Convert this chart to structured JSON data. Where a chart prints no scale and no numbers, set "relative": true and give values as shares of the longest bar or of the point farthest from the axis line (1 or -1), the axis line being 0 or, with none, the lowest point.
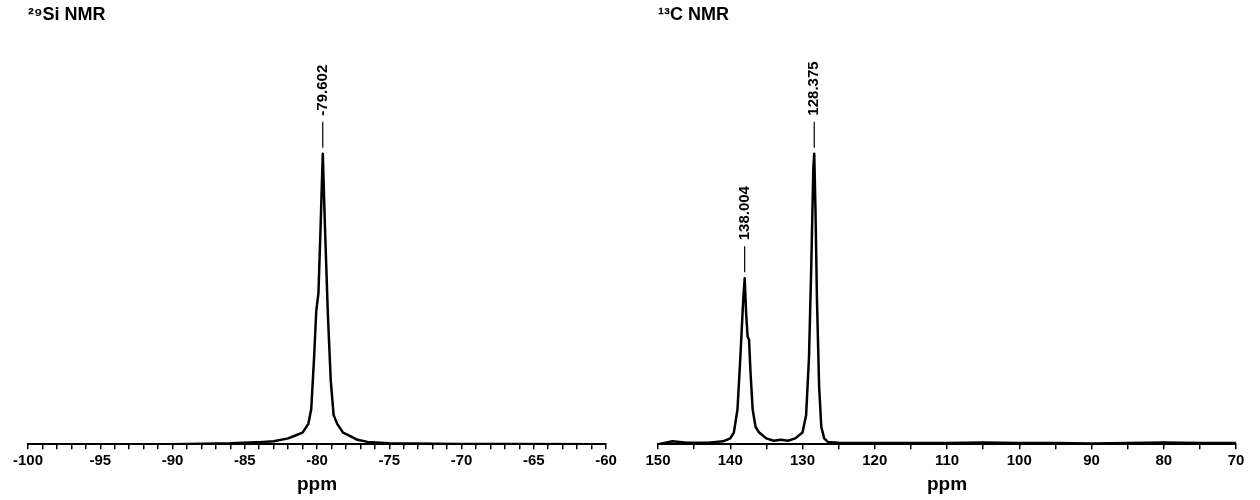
{
  "chart_data": [
    {
      "type": "line",
      "title": "²⁹Si NMR",
      "xlabel": "ppm",
      "relative": true,
      "line_style": "solid",
      "x": [
        -100,
        -90,
        -86,
        -84,
        -83,
        -82,
        -81.5,
        -81,
        -80.6,
        -80.4,
        -80.2,
        -80.05,
        -79.9,
        -79.75,
        -79.6,
        -79.45,
        -79.25,
        -79.05,
        -78.85,
        -78.6,
        -78.2,
        -77.8,
        -77.2,
        -76.5,
        -75,
        -70,
        -60
      ],
      "series": [
        {
          "color": "#000000",
          "values": [
            0,
            0,
            0.003,
            0.007,
            0.01,
            0.02,
            0.03,
            0.04,
            0.07,
            0.12,
            0.3,
            0.46,
            0.52,
            0.75,
            1,
            0.75,
            0.45,
            0.22,
            0.1,
            0.07,
            0.04,
            0.03,
            0.015,
            0.008,
            0.003,
            0.001,
            0
          ]
        }
      ],
      "xlim": [
        -100,
        -60
      ],
      "xticks": [
        -100,
        {
          "value": -99,
          "label": null
        },
        {
          "value": -98,
          "label": null
        },
        {
          "value": -97,
          "label": null
        },
        {
          "value": -96,
          "label": null
        },
        -95,
        {
          "value": -94,
          "label": null
        },
        {
          "value": -93,
          "label": null
        },
        {
          "value": -92,
          "label": null
        },
        {
          "value": -91,
          "label": null
        },
        -90,
        {
          "value": -89,
          "label": null
        },
        {
          "value": -88,
          "label": null
        },
        {
          "value": -87,
          "label": null
        },
        {
          "value": -86,
          "label": null
        },
        -85,
        {
          "value": -84,
          "label": null
        },
        {
          "value": -83,
          "label": null
        },
        {
          "value": -82,
          "label": null
        },
        {
          "value": -81,
          "label": null
        },
        -80,
        {
          "value": -79,
          "label": null
        },
        {
          "value": -78,
          "label": null
        },
        {
          "value": -77,
          "label": null
        },
        {
          "value": -76,
          "label": null
        },
        -75,
        {
          "value": -74,
          "label": null
        },
        {
          "value": -73,
          "label": null
        },
        {
          "value": -72,
          "label": null
        },
        {
          "value": -71,
          "label": null
        },
        -70,
        {
          "value": -69,
          "label": null
        },
        {
          "value": -68,
          "label": null
        },
        {
          "value": -67,
          "label": null
        },
        {
          "value": -66,
          "label": null
        },
        -65,
        {
          "value": -64,
          "label": null
        },
        {
          "value": -63,
          "label": null
        },
        {
          "value": -62,
          "label": null
        },
        {
          "value": -61,
          "label": null
        },
        -60
      ],
      "annotations": [
        {
          "text": "-79.602",
          "x": -79.602,
          "y": 1
        }
      ]
    },
    {
      "type": "line",
      "title": "¹³C NMR",
      "xlabel": "ppm",
      "relative": true,
      "line_style": "solid",
      "x": [
        150,
        148,
        146,
        143,
        141,
        140,
        139.5,
        139,
        138.6,
        138.2,
        138.0,
        137.8,
        137.6,
        137.4,
        137.2,
        136.9,
        136.5,
        136,
        135,
        134,
        133,
        132,
        131,
        130,
        129.5,
        129.1,
        128.8,
        128.5,
        128.375,
        128.2,
        128,
        127.7,
        127.4,
        127,
        126.5,
        125,
        120,
        115,
        110,
        105,
        100,
        95,
        90,
        85,
        80,
        75,
        70
      ],
      "series": [
        {
          "color": "#000000",
          "values": [
            0,
            0.01,
            0.005,
            0.005,
            0.01,
            0.02,
            0.04,
            0.12,
            0.3,
            0.5,
            0.571,
            0.45,
            0.37,
            0.36,
            0.25,
            0.12,
            0.06,
            0.04,
            0.02,
            0.012,
            0.015,
            0.012,
            0.02,
            0.04,
            0.1,
            0.3,
            0.6,
            0.95,
            1,
            0.8,
            0.5,
            0.2,
            0.06,
            0.02,
            0.008,
            0.005,
            0.004,
            0.004,
            0.004,
            0.006,
            0.004,
            0.004,
            0.002,
            0.004,
            0.006,
            0.004,
            0.004
          ]
        }
      ],
      "xlim": [
        150,
        70
      ],
      "xticks": [
        150,
        {
          "value": 145,
          "label": null
        },
        140,
        {
          "value": 135,
          "label": null
        },
        130,
        {
          "value": 125,
          "label": null
        },
        120,
        {
          "value": 115,
          "label": null
        },
        110,
        {
          "value": 105,
          "label": null
        },
        100,
        {
          "value": 95,
          "label": null
        },
        90,
        {
          "value": 85,
          "label": null
        },
        80,
        {
          "value": 75,
          "label": null
        },
        70
      ],
      "annotations": [
        {
          "text": "138.004",
          "x": 138.004,
          "y": 0.571
        },
        {
          "text": "128.375",
          "x": 128.375,
          "y": 1
        }
      ]
    }
  ]
}
